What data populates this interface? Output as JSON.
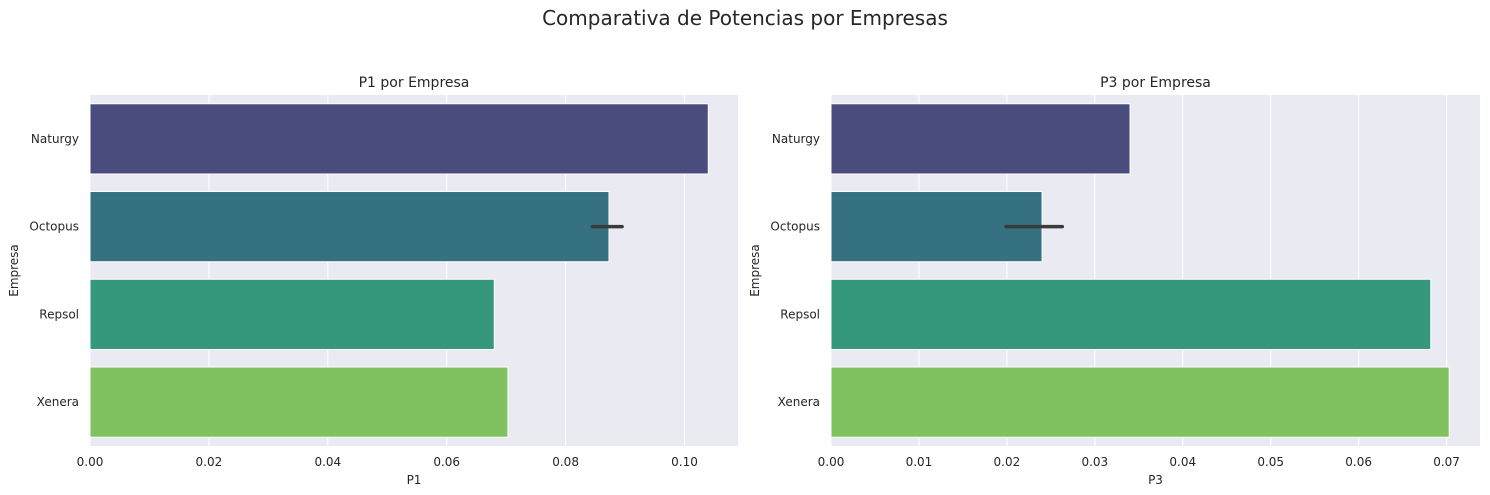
{
  "figure": {
    "title": "Comparativa de Potencias por Empresas"
  },
  "palette": {
    "background": "#eaeaf2",
    "grid": "#ffffff",
    "errorbar": "#3b3b3b"
  },
  "chart_data": [
    {
      "type": "bar",
      "orientation": "horizontal",
      "title": "P1 por Empresa",
      "xlabel": "P1",
      "ylabel": "Empresa",
      "categories": [
        "Naturgy",
        "Octopus",
        "Repsol",
        "Xenera"
      ],
      "values": [
        0.104,
        0.0873,
        0.068,
        0.0703
      ],
      "error": [
        null,
        [
          0.0845,
          0.0895
        ],
        null,
        null
      ],
      "colors": [
        "#4a4c7e",
        "#357180",
        "#35977b",
        "#80c260"
      ],
      "xlim": [
        0,
        0.109
      ],
      "xticks": [
        "0.00",
        "0.02",
        "0.04",
        "0.06",
        "0.08",
        "0.10"
      ],
      "grid": true
    },
    {
      "type": "bar",
      "orientation": "horizontal",
      "title": "P3 por Empresa",
      "xlabel": "P3",
      "ylabel": "Empresa",
      "categories": [
        "Naturgy",
        "Octopus",
        "Repsol",
        "Xenera"
      ],
      "values": [
        0.034,
        0.024,
        0.0682,
        0.0703
      ],
      "error": [
        null,
        [
          0.0199,
          0.0263
        ],
        null,
        null
      ],
      "colors": [
        "#4a4c7e",
        "#357180",
        "#35977b",
        "#80c260"
      ],
      "xlim": [
        0,
        0.0738
      ],
      "xticks": [
        "0.00",
        "0.01",
        "0.02",
        "0.03",
        "0.04",
        "0.05",
        "0.06",
        "0.07"
      ],
      "grid": true
    }
  ]
}
